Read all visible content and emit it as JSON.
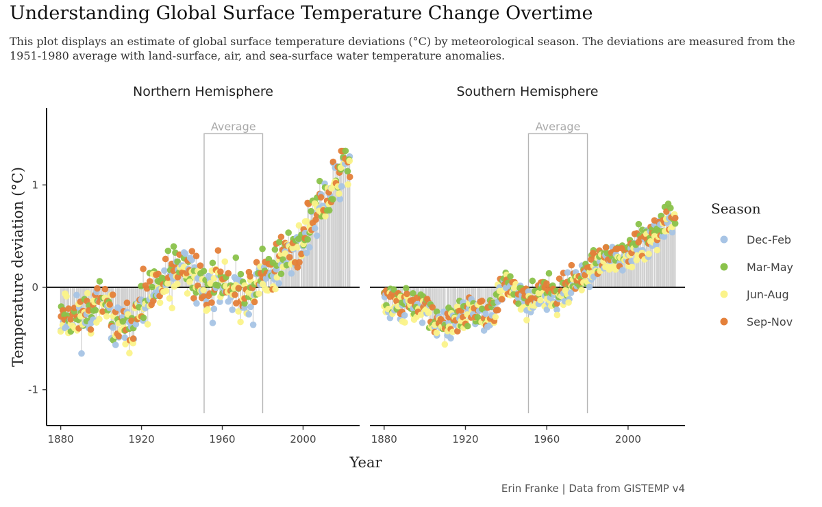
{
  "chart_data": {
    "type": "scatter",
    "title": "Understanding Global Surface Temperature Change Overtime",
    "subtitle": "This plot displays an estimate of global surface temperature deviations (°C) by meteorological season. The deviations are measured from the 1951-1980 average with land-surface, air, and sea-surface water temperature anomalies.",
    "xlabel": "Year",
    "ylabel": "Temperature deviation (°C)",
    "caption": "Erin Franke | Data from GISTEMP v4",
    "xlim": [
      1873,
      2028
    ],
    "ylim": [
      -1.35,
      1.75
    ],
    "x_ticks": [
      1880,
      1920,
      1960,
      2000
    ],
    "y_ticks": [
      -1,
      0,
      1
    ],
    "y_tick_labels": [
      "-1",
      "0",
      "1"
    ],
    "average_period": {
      "label": "Average",
      "start": 1951,
      "end": 1980,
      "top": 1.5
    },
    "legend": {
      "title": "Season",
      "entries": [
        {
          "name": "Dec-Feb",
          "color": "#a7c4e5"
        },
        {
          "name": "Mar-May",
          "color": "#8ac24a"
        },
        {
          "name": "Jun-Aug",
          "color": "#fbf38a"
        },
        {
          "name": "Sep-Nov",
          "color": "#e4803a"
        }
      ]
    },
    "facets": [
      {
        "name": "Northern Hemisphere",
        "anchors": {
          "years": [
            1880,
            1890,
            1900,
            1905,
            1910,
            1915,
            1920,
            1925,
            1930,
            1935,
            1940,
            1945,
            1950,
            1955,
            1960,
            1965,
            1970,
            1975,
            1980,
            1985,
            1990,
            1995,
            2000,
            2005,
            2010,
            2015,
            2020,
            2023
          ],
          "values": [
            -0.25,
            -0.3,
            -0.15,
            -0.3,
            -0.42,
            -0.35,
            -0.2,
            -0.1,
            0.0,
            0.1,
            0.2,
            0.15,
            0.0,
            -0.02,
            0.08,
            0.0,
            -0.05,
            -0.08,
            0.15,
            0.15,
            0.3,
            0.38,
            0.45,
            0.68,
            0.78,
            1.0,
            1.18,
            1.2
          ]
        },
        "spread": 0.17,
        "seed": 11
      },
      {
        "name": "Southern Hemisphere",
        "anchors": {
          "years": [
            1880,
            1890,
            1900,
            1905,
            1910,
            1915,
            1920,
            1925,
            1930,
            1935,
            1940,
            1945,
            1950,
            1955,
            1960,
            1965,
            1970,
            1975,
            1980,
            1985,
            1990,
            1995,
            2000,
            2005,
            2010,
            2015,
            2020,
            2023
          ],
          "values": [
            -0.12,
            -0.18,
            -0.2,
            -0.3,
            -0.38,
            -0.32,
            -0.25,
            -0.22,
            -0.28,
            -0.15,
            0.08,
            -0.08,
            -0.12,
            -0.1,
            -0.02,
            -0.08,
            0.02,
            0.05,
            0.15,
            0.22,
            0.28,
            0.32,
            0.3,
            0.42,
            0.48,
            0.55,
            0.65,
            0.7
          ]
        },
        "spread": 0.1,
        "seed": 29
      }
    ]
  }
}
